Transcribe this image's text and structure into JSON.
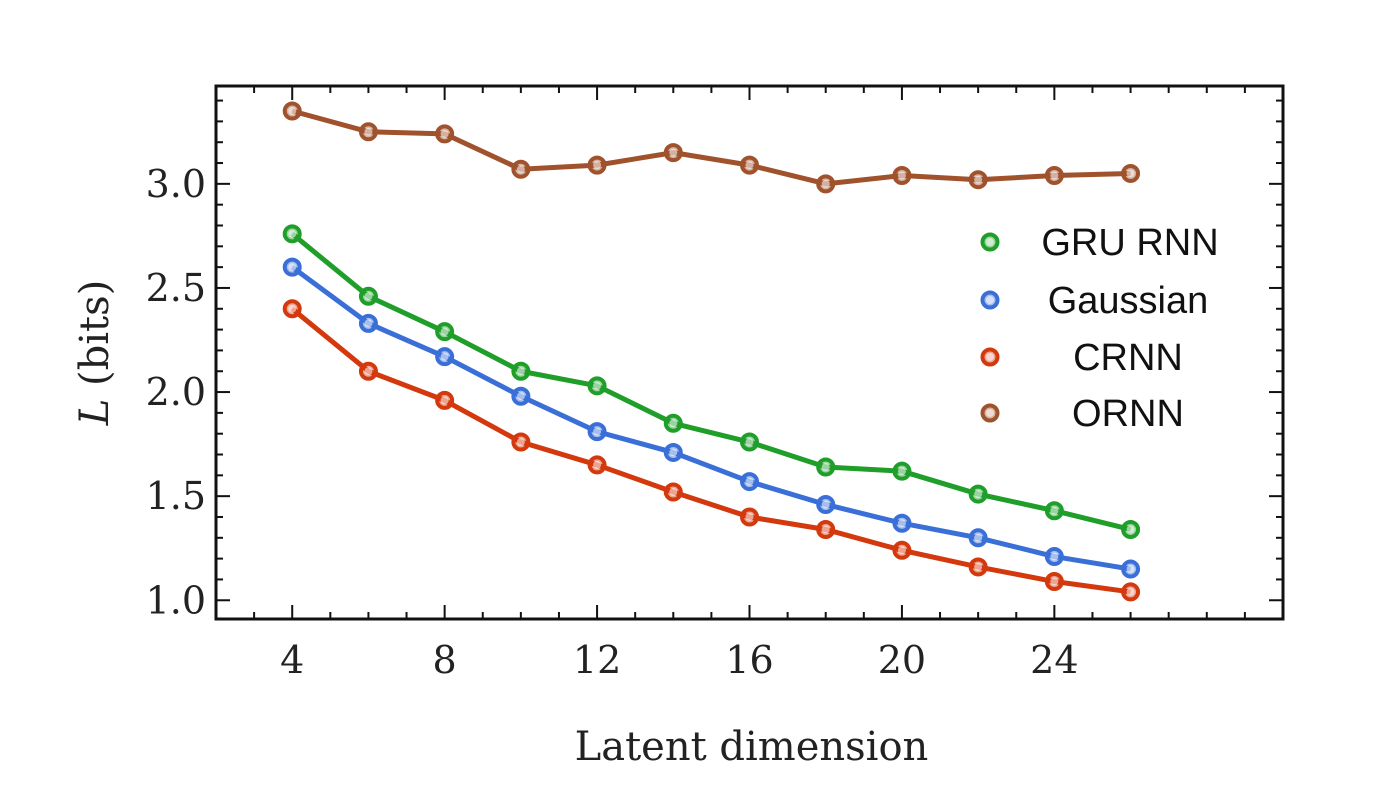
{
  "chart_data": {
    "type": "line",
    "xlabel": "Latent dimension",
    "ylabel_italic": "L",
    "ylabel_rest": " (bits)",
    "xlim": [
      2,
      30
    ],
    "ylim": [
      0.91,
      3.47
    ],
    "xticks": [
      4,
      8,
      12,
      16,
      20,
      24
    ],
    "yticks": [
      1.0,
      1.5,
      2.0,
      2.5,
      3.0
    ],
    "ytick_labels": [
      "1.0",
      "1.5",
      "2.0",
      "2.5",
      "3.0"
    ],
    "x": [
      4,
      6,
      8,
      10,
      12,
      14,
      16,
      18,
      20,
      22,
      24,
      26
    ],
    "legend_position": "right",
    "series": [
      {
        "name": "GRU RNN",
        "color": "#1f9e2a",
        "values": [
          2.76,
          2.46,
          2.29,
          2.1,
          2.03,
          1.85,
          1.76,
          1.64,
          1.62,
          1.51,
          1.43,
          1.34
        ]
      },
      {
        "name": "Gaussian",
        "color": "#3a6fd8",
        "values": [
          2.6,
          2.33,
          2.17,
          1.98,
          1.81,
          1.71,
          1.57,
          1.46,
          1.37,
          1.3,
          1.21,
          1.15
        ]
      },
      {
        "name": "CRNN",
        "color": "#d4380d",
        "values": [
          2.4,
          2.1,
          1.96,
          1.76,
          1.65,
          1.52,
          1.4,
          1.34,
          1.24,
          1.16,
          1.09,
          1.04
        ]
      },
      {
        "name": "ORNN",
        "color": "#a0522d",
        "values": [
          3.35,
          3.25,
          3.24,
          3.07,
          3.09,
          3.15,
          3.09,
          3.0,
          3.04,
          3.02,
          3.04,
          3.05
        ]
      }
    ]
  }
}
